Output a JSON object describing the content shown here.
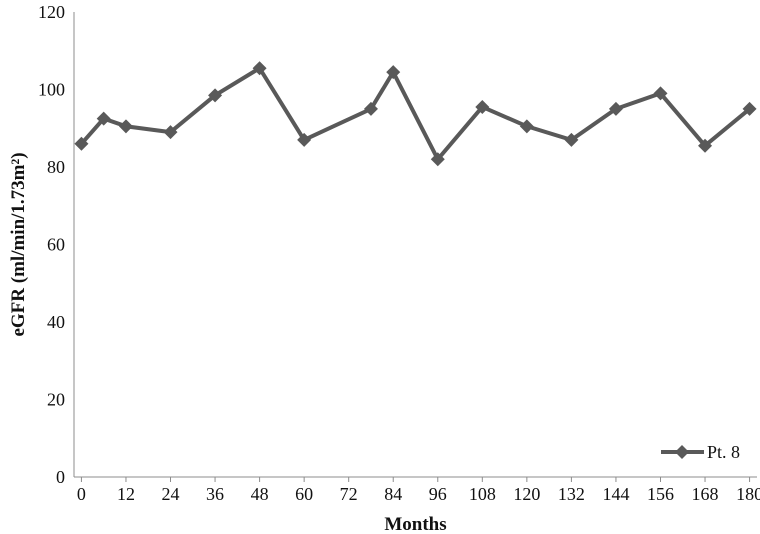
{
  "chart_data": {
    "type": "line",
    "xlabel": "Months",
    "ylabel": "eGFR (ml/min/1.73m²)",
    "xlim": [
      -2,
      182
    ],
    "ylim": [
      0,
      120
    ],
    "x_ticks": [
      "0",
      "12",
      "24",
      "36",
      "48",
      "60",
      "72",
      "84",
      "96",
      "108",
      "120",
      "132",
      "144",
      "156",
      "168",
      "180"
    ],
    "y_ticks": [
      "0",
      "20",
      "40",
      "60",
      "80",
      "100",
      "120"
    ],
    "grid": false,
    "legend_position": "bottom-right",
    "series": [
      {
        "name": "Pt. 8",
        "color": "#595959",
        "marker": "diamond",
        "x": [
          0,
          6,
          12,
          24,
          36,
          48,
          60,
          78,
          84,
          96,
          108,
          120,
          132,
          144,
          156,
          168,
          180
        ],
        "y": [
          86,
          92.5,
          90.5,
          89,
          98.5,
          105.5,
          87,
          95,
          104.5,
          82,
          95.5,
          90.5,
          87,
          95,
          99,
          85.5,
          95
        ]
      }
    ]
  }
}
